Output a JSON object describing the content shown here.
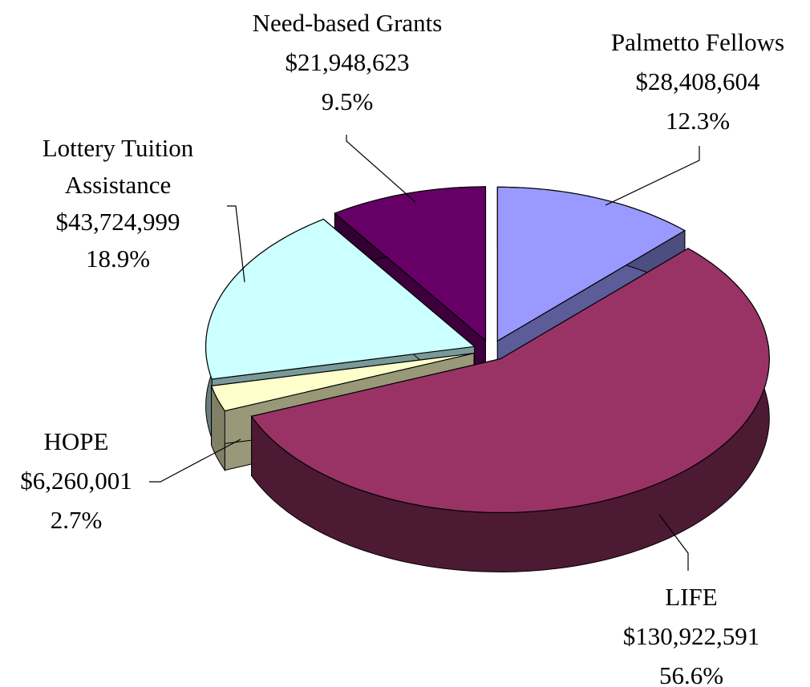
{
  "chart_data": {
    "type": "pie3d",
    "categories": [
      "Palmetto Fellows",
      "LIFE",
      "HOPE",
      "Lottery Tuition Assistance",
      "Need-based Grants"
    ],
    "values": [
      28408604,
      130922591,
      6260001,
      43724999,
      21948623
    ],
    "value_labels": [
      "$28,408,604",
      "$130,922,591",
      "$6,260,001",
      "$43,724,999",
      "$21,948,623"
    ],
    "percent_labels": [
      "12.3%",
      "56.6%",
      "2.7%",
      "18.9%",
      "9.5%"
    ],
    "colors": [
      "#9999ff",
      "#993366",
      "#ffffcc",
      "#ccffff",
      "#660066"
    ]
  }
}
